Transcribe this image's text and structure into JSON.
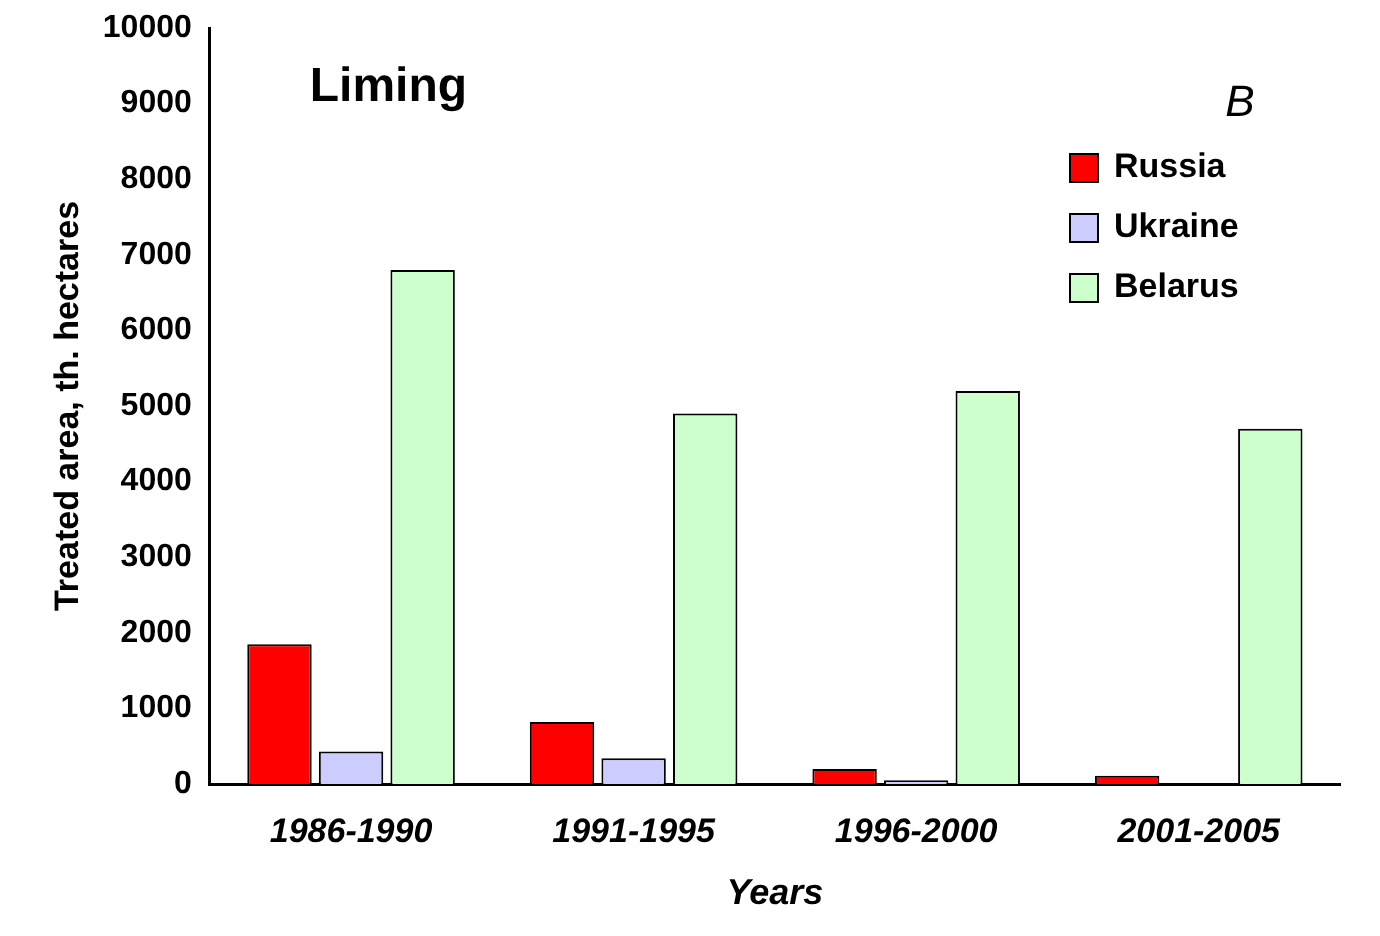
{
  "chart_data": {
    "type": "bar",
    "title": "Liming",
    "annotations": [
      "B"
    ],
    "xlabel": "Years",
    "ylabel": "Treated area, th. hectares",
    "categories": [
      "1986-1990",
      "1991-1995",
      "1996-2000",
      "2001-2005"
    ],
    "series": [
      {
        "name": "Russia",
        "color": "#ff0000",
        "values": [
          1850,
          820,
          200,
          110
        ]
      },
      {
        "name": "Ukraine",
        "color": "#ccccff",
        "values": [
          430,
          340,
          50,
          0
        ]
      },
      {
        "name": "Belarus",
        "color": "#ccffcc",
        "values": [
          6800,
          4900,
          5200,
          4700
        ]
      }
    ],
    "ylim": [
      0,
      10000
    ],
    "yticks": [
      0,
      1000,
      2000,
      3000,
      4000,
      5000,
      6000,
      7000,
      8000,
      9000,
      10000
    ],
    "grid": false,
    "legend": "top right"
  }
}
